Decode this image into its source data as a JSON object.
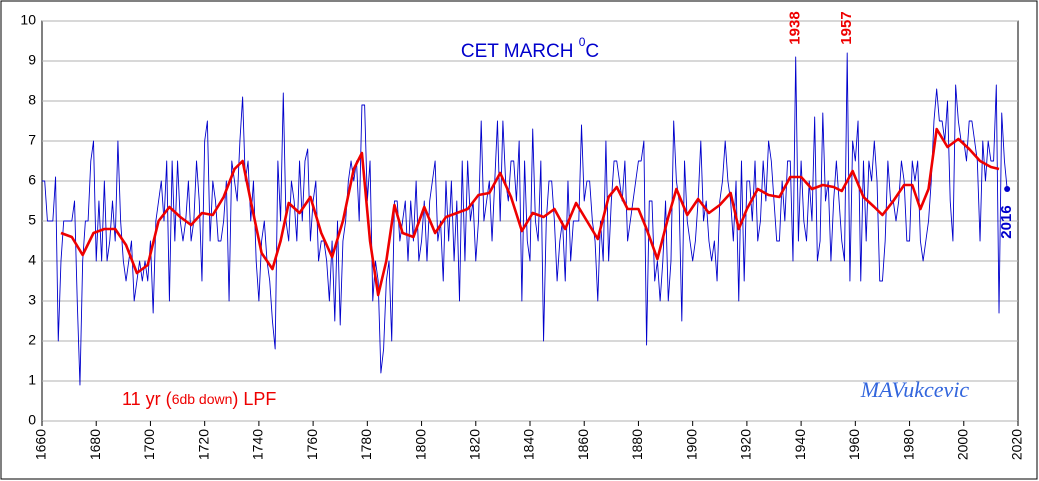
{
  "chart_data": {
    "type": "line",
    "title_parts": [
      "CET  MARCH  ",
      "0",
      "C"
    ],
    "lpf_label_parts": [
      "11 yr (",
      "6db down",
      ") LPF"
    ],
    "credit": "MAVukcevic",
    "annotations": [
      "1938",
      "1957",
      "2016"
    ],
    "xlim": [
      1660,
      2020
    ],
    "xticks": [
      1660,
      1680,
      1700,
      1720,
      1740,
      1760,
      1780,
      1800,
      1820,
      1840,
      1860,
      1880,
      1900,
      1920,
      1940,
      1960,
      1980,
      2000,
      2020
    ],
    "ylim": [
      0,
      10
    ],
    "yticks": [
      0,
      1,
      2,
      3,
      4,
      5,
      6,
      7,
      8,
      9,
      10
    ],
    "grid": true,
    "series": [
      {
        "color": "#0000cc",
        "x": [
          1660,
          1661,
          1662,
          1663,
          1664,
          1665,
          1666,
          1667,
          1668,
          1669,
          1670,
          1671,
          1672,
          1673,
          1674,
          1675,
          1676,
          1677,
          1678,
          1679,
          1680,
          1681,
          1682,
          1683,
          1684,
          1685,
          1686,
          1687,
          1688,
          1689,
          1690,
          1691,
          1692,
          1693,
          1694,
          1695,
          1696,
          1697,
          1698,
          1699,
          1700,
          1701,
          1702,
          1703,
          1704,
          1705,
          1706,
          1707,
          1708,
          1709,
          1710,
          1711,
          1712,
          1713,
          1714,
          1715,
          1716,
          1717,
          1718,
          1719,
          1720,
          1721,
          1722,
          1723,
          1724,
          1725,
          1726,
          1727,
          1728,
          1729,
          1730,
          1731,
          1732,
          1733,
          1734,
          1735,
          1736,
          1737,
          1738,
          1739,
          1740,
          1741,
          1742,
          1743,
          1744,
          1745,
          1746,
          1747,
          1748,
          1749,
          1750,
          1751,
          1752,
          1753,
          1754,
          1755,
          1756,
          1757,
          1758,
          1759,
          1760,
          1761,
          1762,
          1763,
          1764,
          1765,
          1766,
          1767,
          1768,
          1769,
          1770,
          1771,
          1772,
          1773,
          1774,
          1775,
          1776,
          1777,
          1778,
          1779,
          1780,
          1781,
          1782,
          1783,
          1784,
          1785,
          1786,
          1787,
          1788,
          1789,
          1790,
          1791,
          1792,
          1793,
          1794,
          1795,
          1796,
          1797,
          1798,
          1799,
          1800,
          1801,
          1802,
          1803,
          1804,
          1805,
          1806,
          1807,
          1808,
          1809,
          1810,
          1811,
          1812,
          1813,
          1814,
          1815,
          1816,
          1817,
          1818,
          1819,
          1820,
          1821,
          1822,
          1823,
          1824,
          1825,
          1826,
          1827,
          1828,
          1829,
          1830,
          1831,
          1832,
          1833,
          1834,
          1835,
          1836,
          1837,
          1838,
          1839,
          1840,
          1841,
          1842,
          1843,
          1844,
          1845,
          1846,
          1847,
          1848,
          1849,
          1850,
          1851,
          1852,
          1853,
          1854,
          1855,
          1856,
          1857,
          1858,
          1859,
          1860,
          1861,
          1862,
          1863,
          1864,
          1865,
          1866,
          1867,
          1868,
          1869,
          1870,
          1871,
          1872,
          1873,
          1874,
          1875,
          1876,
          1877,
          1878,
          1879,
          1880,
          1881,
          1882,
          1883,
          1884,
          1885,
          1886,
          1887,
          1888,
          1889,
          1890,
          1891,
          1892,
          1893,
          1894,
          1895,
          1896,
          1897,
          1898,
          1899,
          1900,
          1901,
          1902,
          1903,
          1904,
          1905,
          1906,
          1907,
          1908,
          1909,
          1910,
          1911,
          1912,
          1913,
          1914,
          1915,
          1916,
          1917,
          1918,
          1919,
          1920,
          1921,
          1922,
          1923,
          1924,
          1925,
          1926,
          1927,
          1928,
          1929,
          1930,
          1931,
          1932,
          1933,
          1934,
          1935,
          1936,
          1937,
          1938,
          1939,
          1940,
          1941,
          1942,
          1943,
          1944,
          1945,
          1946,
          1947,
          1948,
          1949,
          1950,
          1951,
          1952,
          1953,
          1954,
          1955,
          1956,
          1957,
          1958,
          1959,
          1960,
          1961,
          1962,
          1963,
          1964,
          1965,
          1966,
          1967,
          1968,
          1969,
          1970,
          1971,
          1972,
          1973,
          1974,
          1975,
          1976,
          1977,
          1978,
          1979,
          1980,
          1981,
          1982,
          1983,
          1984,
          1985,
          1986,
          1987,
          1988,
          1989,
          1990,
          1991,
          1992,
          1993,
          1994,
          1995,
          1996,
          1997,
          1998,
          1999,
          2000,
          2001,
          2002,
          2003,
          2004,
          2005,
          2006,
          2007,
          2008,
          2009,
          2010,
          2011,
          2012,
          2013,
          2014,
          2015,
          2016
        ],
        "values": [
          6.0,
          6.0,
          5.0,
          5.0,
          5.0,
          6.1,
          2.0,
          4.0,
          5.0,
          5.0,
          5.0,
          5.0,
          5.5,
          3.0,
          0.9,
          4.0,
          5.0,
          5.0,
          6.5,
          7.0,
          4.0,
          5.5,
          4.0,
          6.0,
          4.0,
          4.5,
          5.5,
          4.5,
          7.0,
          5.0,
          4.0,
          3.5,
          4.0,
          4.5,
          3.0,
          3.5,
          4.0,
          3.5,
          4.0,
          3.5,
          4.5,
          2.7,
          5.0,
          5.5,
          6.0,
          5.0,
          6.5,
          3.0,
          6.5,
          4.5,
          6.5,
          5.0,
          4.5,
          5.0,
          6.0,
          4.5,
          5.0,
          6.5,
          5.5,
          3.5,
          7.0,
          7.5,
          4.5,
          6.0,
          5.5,
          4.5,
          4.5,
          5.0,
          6.0,
          3.0,
          6.5,
          6.0,
          5.5,
          7.0,
          8.1,
          6.0,
          6.5,
          5.0,
          6.0,
          4.0,
          3.0,
          4.5,
          5.0,
          4.0,
          3.5,
          2.5,
          1.8,
          6.5,
          5.0,
          8.2,
          5.0,
          4.5,
          6.0,
          5.5,
          4.5,
          6.5,
          5.0,
          6.5,
          6.8,
          4.5,
          5.5,
          6.0,
          4.0,
          4.5,
          4.5,
          4.0,
          3.0,
          4.5,
          2.5,
          5.0,
          2.4,
          4.5,
          5.0,
          6.0,
          6.5,
          6.0,
          6.5,
          5.0,
          7.9,
          7.9,
          5.5,
          6.5,
          3.0,
          4.0,
          3.5,
          1.2,
          1.8,
          3.5,
          4.0,
          2.0,
          5.5,
          5.5,
          4.5,
          5.0,
          5.5,
          4.0,
          5.5,
          4.5,
          6.0,
          4.0,
          4.5,
          5.5,
          4.0,
          5.5,
          6.0,
          6.5,
          4.5,
          5.0,
          3.5,
          6.0,
          4.5,
          6.0,
          4.0,
          5.5,
          3.0,
          6.5,
          4.0,
          6.5,
          5.0,
          5.5,
          4.0,
          5.0,
          7.5,
          5.0,
          5.5,
          6.0,
          4.5,
          6.0,
          7.5,
          5.0,
          7.5,
          6.0,
          5.5,
          6.5,
          6.5,
          5.5,
          7.0,
          3.0,
          6.5,
          4.5,
          4.0,
          7.3,
          5.0,
          4.5,
          6.5,
          2.0,
          5.0,
          6.0,
          6.0,
          5.0,
          3.5,
          4.5,
          5.0,
          3.5,
          6.0,
          4.0,
          5.0,
          5.0,
          5.0,
          7.4,
          5.5,
          6.0,
          6.0,
          5.0,
          4.5,
          3.0,
          5.0,
          4.0,
          7.0,
          4.0,
          5.5,
          6.5,
          6.5,
          6.0,
          5.5,
          6.5,
          4.5,
          5.0,
          5.5,
          6.0,
          6.5,
          6.5,
          7.0,
          1.9,
          5.5,
          5.5,
          3.5,
          4.0,
          3.0,
          4.0,
          5.5,
          3.0,
          4.0,
          7.5,
          6.0,
          5.5,
          2.5,
          6.5,
          5.0,
          4.5,
          4.0,
          4.5,
          5.5,
          7.0,
          5.0,
          5.5,
          4.5,
          4.0,
          4.5,
          3.5,
          5.5,
          6.0,
          7.0,
          6.0,
          5.5,
          4.5,
          6.0,
          3.0,
          6.5,
          3.5,
          6.0,
          6.0,
          5.0,
          6.5,
          4.5,
          5.0,
          6.5,
          5.5,
          7.0,
          6.5,
          5.5,
          4.5,
          4.5,
          6.0,
          5.0,
          6.5,
          6.5,
          4.0,
          9.1,
          4.5,
          6.5,
          5.0,
          4.5,
          6.0,
          5.0,
          7.6,
          4.0,
          4.5,
          7.7,
          5.5,
          6.0,
          4.0,
          5.5,
          6.5,
          5.5,
          4.5,
          4.0,
          9.2,
          3.5,
          7.0,
          6.5,
          7.5,
          3.5,
          6.5,
          4.5,
          6.5,
          6.0,
          7.0,
          6.0,
          3.5,
          3.5,
          4.5,
          6.5,
          5.5,
          5.5,
          5.0,
          5.5,
          6.5,
          6.0,
          4.5,
          4.5,
          6.5,
          6.0,
          6.5,
          4.5,
          4.0,
          4.5,
          5.0,
          6.0,
          7.5,
          8.3,
          7.5,
          7.5,
          7.0,
          8.0,
          5.5,
          4.5,
          8.4,
          7.5,
          7.0,
          7.0,
          6.5,
          7.5,
          7.5,
          7.0,
          6.5,
          4.5,
          7.0,
          6.0,
          7.0,
          6.5,
          6.5,
          8.4,
          2.7,
          7.7,
          6.5,
          5.8
        ]
      },
      {
        "color": "#ee0000",
        "x": [
          1667,
          1671,
          1675,
          1679,
          1683,
          1687,
          1691,
          1695,
          1699,
          1703,
          1707,
          1711,
          1715,
          1719,
          1723,
          1727,
          1731,
          1734,
          1737,
          1741,
          1745,
          1748,
          1751,
          1755,
          1759,
          1763,
          1767,
          1771,
          1775,
          1778,
          1781,
          1784,
          1787,
          1790,
          1793,
          1797,
          1801,
          1805,
          1809,
          1813,
          1817,
          1821,
          1825,
          1829,
          1833,
          1837,
          1841,
          1845,
          1849,
          1853,
          1857,
          1861,
          1865,
          1869,
          1872,
          1876,
          1880,
          1883,
          1887,
          1891,
          1894,
          1898,
          1902,
          1906,
          1910,
          1914,
          1917,
          1920,
          1924,
          1928,
          1932,
          1936,
          1940,
          1944,
          1948,
          1952,
          1955,
          1959,
          1963,
          1967,
          1970,
          1974,
          1978,
          1981,
          1984,
          1987,
          1990,
          1994,
          1998,
          2002,
          2006,
          2010,
          2013
        ],
        "values": [
          4.7,
          4.6,
          4.15,
          4.7,
          4.8,
          4.8,
          4.4,
          3.7,
          3.9,
          5.0,
          5.35,
          5.1,
          4.9,
          5.2,
          5.15,
          5.6,
          6.3,
          6.5,
          5.5,
          4.2,
          3.8,
          4.5,
          5.45,
          5.2,
          5.6,
          4.7,
          4.1,
          5.0,
          6.3,
          6.7,
          4.5,
          3.15,
          4.0,
          5.4,
          4.7,
          4.6,
          5.35,
          4.7,
          5.1,
          5.2,
          5.3,
          5.65,
          5.7,
          6.2,
          5.6,
          4.75,
          5.2,
          5.1,
          5.3,
          4.8,
          5.45,
          5.0,
          4.55,
          5.6,
          5.85,
          5.3,
          5.3,
          4.8,
          4.05,
          5.1,
          5.8,
          5.15,
          5.55,
          5.2,
          5.4,
          5.7,
          4.8,
          5.3,
          5.8,
          5.65,
          5.6,
          6.1,
          6.1,
          5.8,
          5.9,
          5.85,
          5.75,
          6.25,
          5.6,
          5.35,
          5.15,
          5.5,
          5.9,
          5.9,
          5.3,
          5.8,
          7.3,
          6.85,
          7.05,
          6.8,
          6.5,
          6.35,
          6.3
        ]
      }
    ]
  }
}
